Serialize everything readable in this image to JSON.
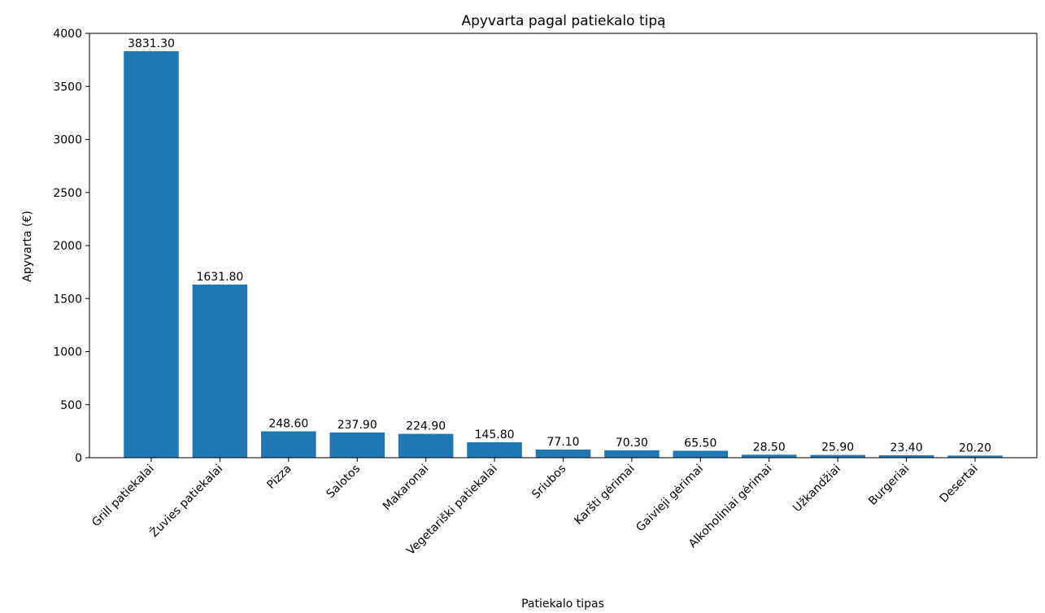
{
  "chart_data": {
    "type": "bar",
    "title": "Apyvarta pagal patiekalo tipą",
    "xlabel": "Patiekalo tipas",
    "ylabel": "Apyvarta (€)",
    "categories": [
      "Grill patiekalai",
      "Žuvies patiekalai",
      "Pizza",
      "Salotos",
      "Makaronai",
      "Vegetariški patiekalai",
      "Sriubos",
      "Karšti gėrimai",
      "Gaivieji gėrimai",
      "Alkoholiniai gėrimai",
      "Užkandžiai",
      "Burgeriai",
      "Desertai"
    ],
    "values": [
      3831.3,
      1631.8,
      248.6,
      237.9,
      224.9,
      145.8,
      77.1,
      70.3,
      65.5,
      28.5,
      25.9,
      23.4,
      20.2
    ],
    "value_labels": [
      "3831.30",
      "1631.80",
      "248.60",
      "237.90",
      "224.90",
      "145.80",
      "77.10",
      "70.30",
      "65.50",
      "28.50",
      "25.90",
      "23.40",
      "20.20"
    ],
    "ylim": [
      0,
      4000
    ],
    "yticks": [
      0,
      500,
      1000,
      1500,
      2000,
      2500,
      3000,
      3500,
      4000
    ],
    "ytick_labels": [
      "0",
      "500",
      "1000",
      "1500",
      "2000",
      "2500",
      "3000",
      "3500",
      "4000"
    ],
    "bar_color": "#1f77b4",
    "grid": false,
    "legend": "none"
  }
}
